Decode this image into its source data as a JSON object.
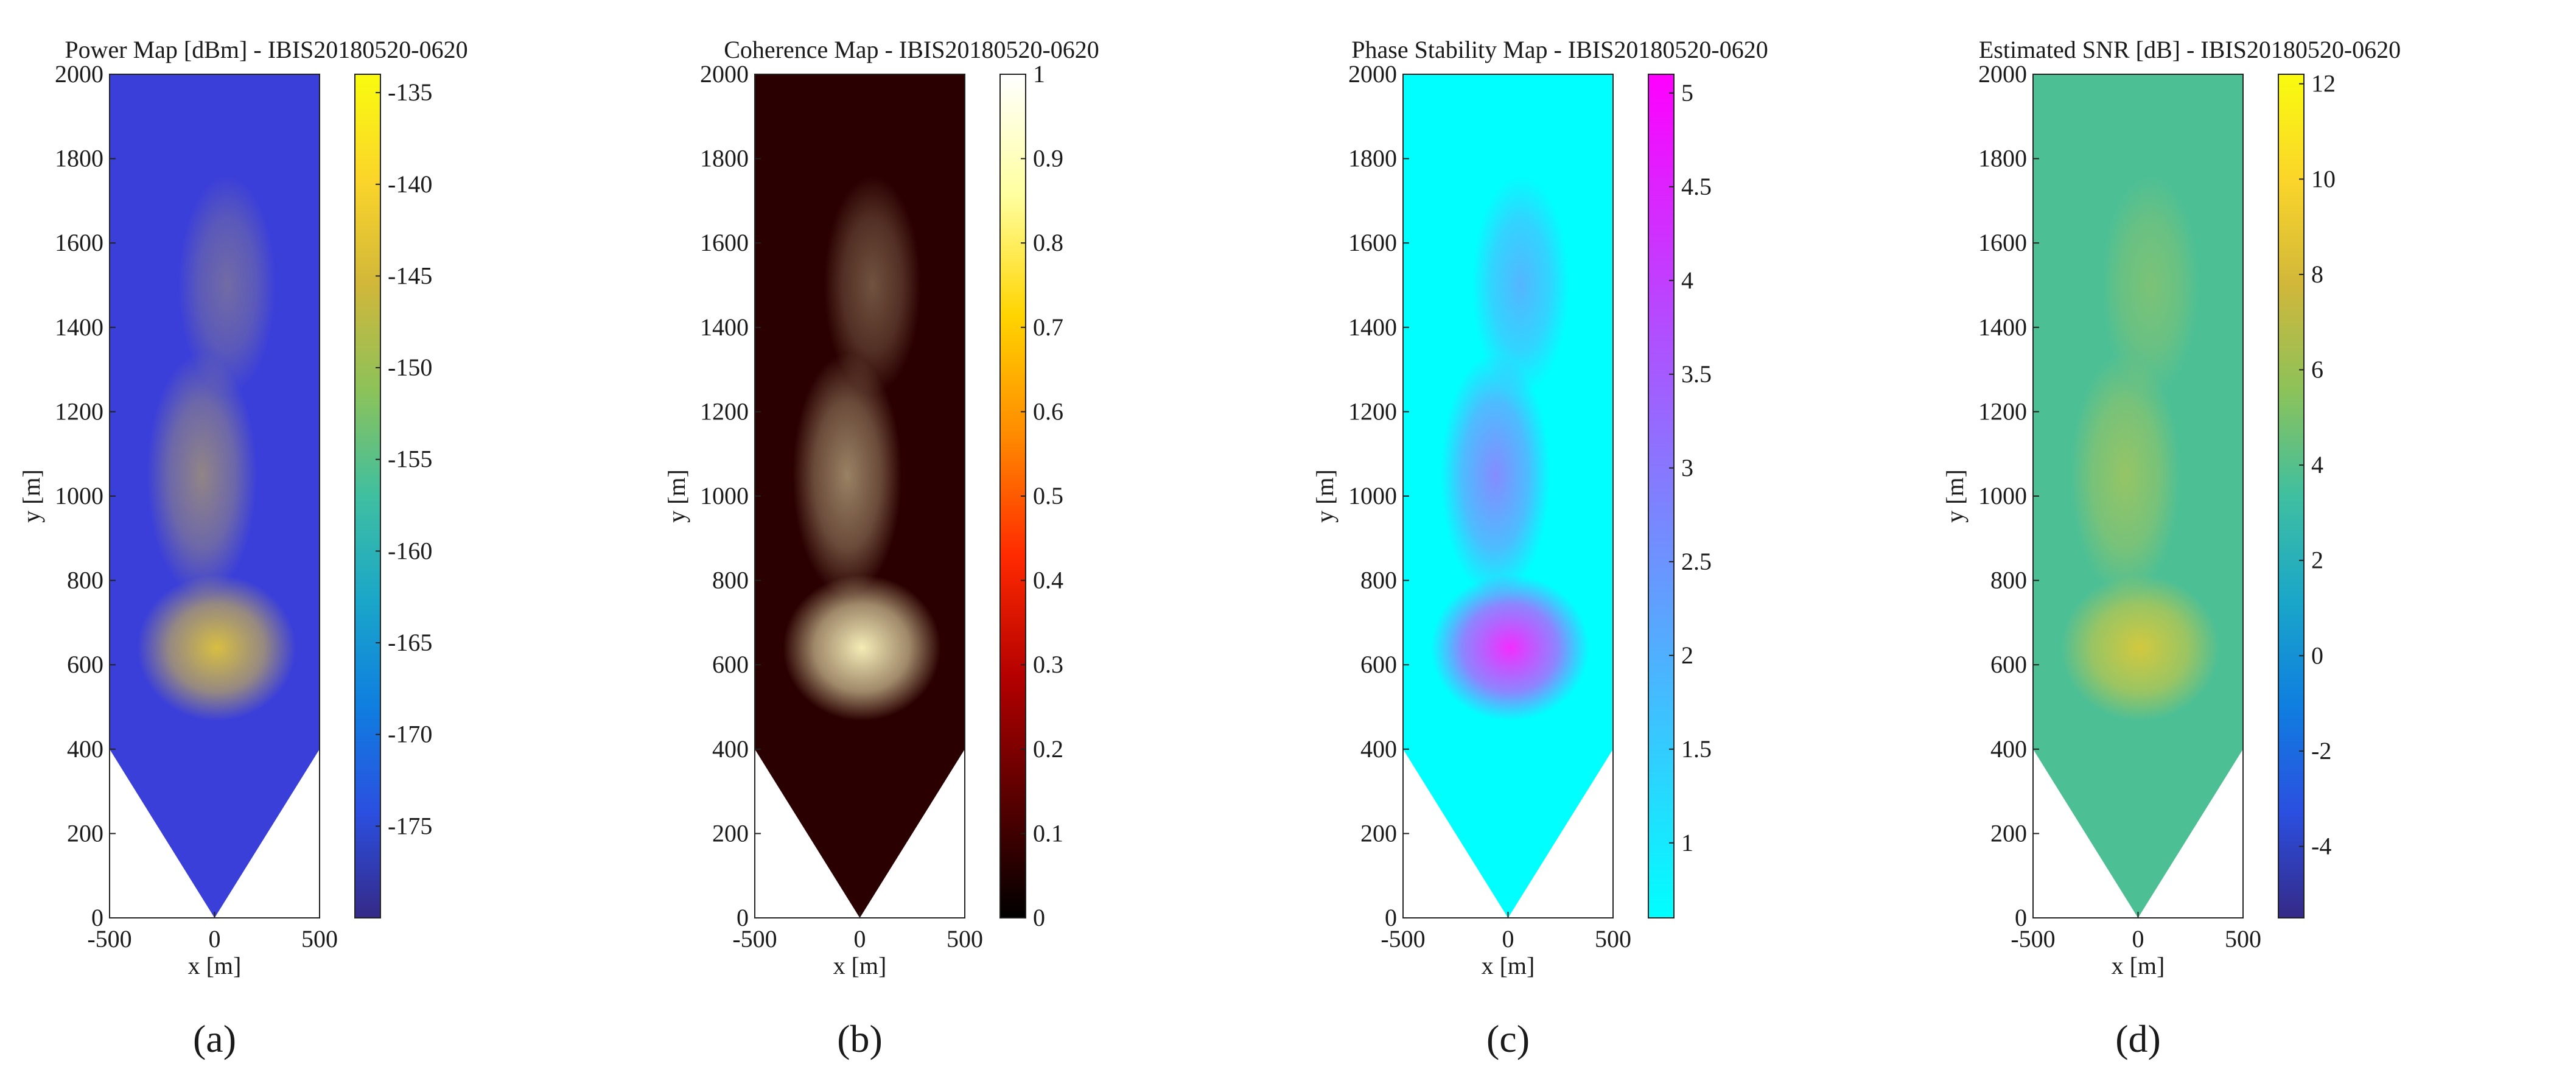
{
  "figure": {
    "panels": [
      {
        "letter": "(a)",
        "chart_data": {
          "type": "heatmap",
          "title": "Power Map [dBm] - IBIS20180520-0620",
          "xlabel": "x [m]",
          "ylabel": "y [m]",
          "xlim": [
            -500,
            500
          ],
          "ylim": [
            0,
            2000
          ],
          "xticks": [
            "-500",
            "0",
            "500"
          ],
          "yticks": [
            "0",
            "200",
            "400",
            "600",
            "800",
            "1000",
            "1200",
            "1400",
            "1600",
            "1800",
            "2000"
          ],
          "colormap": "parula",
          "colorbar": {
            "ticks": [
              "-135",
              "-140",
              "-145",
              "-150",
              "-155",
              "-160",
              "-165",
              "-170",
              "-175"
            ],
            "tick_values": [
              -135,
              -140,
              -145,
              -150,
              -155,
              -160,
              -165,
              -170,
              -175
            ],
            "range": [
              -180,
              -134
            ]
          },
          "background_color": "#3b3fd9",
          "footprint": "sector from origin widening to full width at y=400",
          "highlight_region": {
            "description": "strong returns near x≈0, y≈550–700",
            "color": "#e0c53a"
          }
        }
      },
      {
        "letter": "(b)",
        "chart_data": {
          "type": "heatmap",
          "title": "Coherence Map - IBIS20180520-0620",
          "xlabel": "x [m]",
          "ylabel": "y [m]",
          "xlim": [
            -500,
            500
          ],
          "ylim": [
            0,
            2000
          ],
          "xticks": [
            "-500",
            "0",
            "500"
          ],
          "yticks": [
            "0",
            "200",
            "400",
            "600",
            "800",
            "1000",
            "1200",
            "1400",
            "1600",
            "1800",
            "2000"
          ],
          "colormap": "hot",
          "colorbar": {
            "ticks": [
              "1",
              "0.9",
              "0.8",
              "0.7",
              "0.6",
              "0.5",
              "0.4",
              "0.3",
              "0.2",
              "0.1",
              "0"
            ],
            "tick_values": [
              1,
              0.9,
              0.8,
              0.7,
              0.6,
              0.5,
              0.4,
              0.3,
              0.2,
              0.1,
              0
            ],
            "range": [
              0,
              1
            ]
          },
          "background_color": "#2a0000",
          "footprint": "sector from origin widening to full width at y=400",
          "highlight_region": {
            "description": "high coherence near x≈0, y≈500–800",
            "color": "#fff8c0"
          }
        }
      },
      {
        "letter": "(c)",
        "chart_data": {
          "type": "heatmap",
          "title": "Phase Stability Map - IBIS20180520-0620",
          "xlabel": "x [m]",
          "ylabel": "y [m]",
          "xlim": [
            -500,
            500
          ],
          "ylim": [
            0,
            2000
          ],
          "xticks": [
            "-500",
            "0",
            "500"
          ],
          "yticks": [
            "0",
            "200",
            "400",
            "600",
            "800",
            "1000",
            "1200",
            "1400",
            "1600",
            "1800",
            "2000"
          ],
          "colormap": "cool",
          "colorbar": {
            "ticks": [
              "5",
              "4.5",
              "4",
              "3.5",
              "3",
              "2.5",
              "2",
              "1.5",
              "1"
            ],
            "tick_values": [
              5,
              4.5,
              4,
              3.5,
              3,
              2.5,
              2,
              1.5,
              1
            ],
            "range": [
              0.6,
              5.1
            ]
          },
          "background_color": "#00ffff",
          "footprint": "sector from origin widening to full width at y=400",
          "highlight_region": {
            "description": "unstable phase near x≈0, y≈550–700",
            "color": "#ff22ff"
          }
        }
      },
      {
        "letter": "(d)",
        "chart_data": {
          "type": "heatmap",
          "title": "Estimated SNR [dB] - IBIS20180520-0620",
          "xlabel": "x [m]",
          "ylabel": "y [m]",
          "xlim": [
            -500,
            500
          ],
          "ylim": [
            0,
            2000
          ],
          "xticks": [
            "-500",
            "0",
            "500"
          ],
          "yticks": [
            "0",
            "200",
            "400",
            "600",
            "800",
            "1000",
            "1200",
            "1400",
            "1600",
            "1800",
            "2000"
          ],
          "colormap": "parula",
          "colorbar": {
            "ticks": [
              "12",
              "10",
              "8",
              "6",
              "4",
              "2",
              "0",
              "-2",
              "-4"
            ],
            "tick_values": [
              12,
              10,
              8,
              6,
              4,
              2,
              0,
              -2,
              -4
            ],
            "range": [
              -5.5,
              12.2
            ]
          },
          "background_color": "#4dbf95",
          "footprint": "sector from origin widening to full width at y=400",
          "highlight_region": {
            "description": "higher SNR streaks near x≈-100–200, y≈600–1100",
            "color": "#d9c93a"
          }
        }
      }
    ]
  }
}
